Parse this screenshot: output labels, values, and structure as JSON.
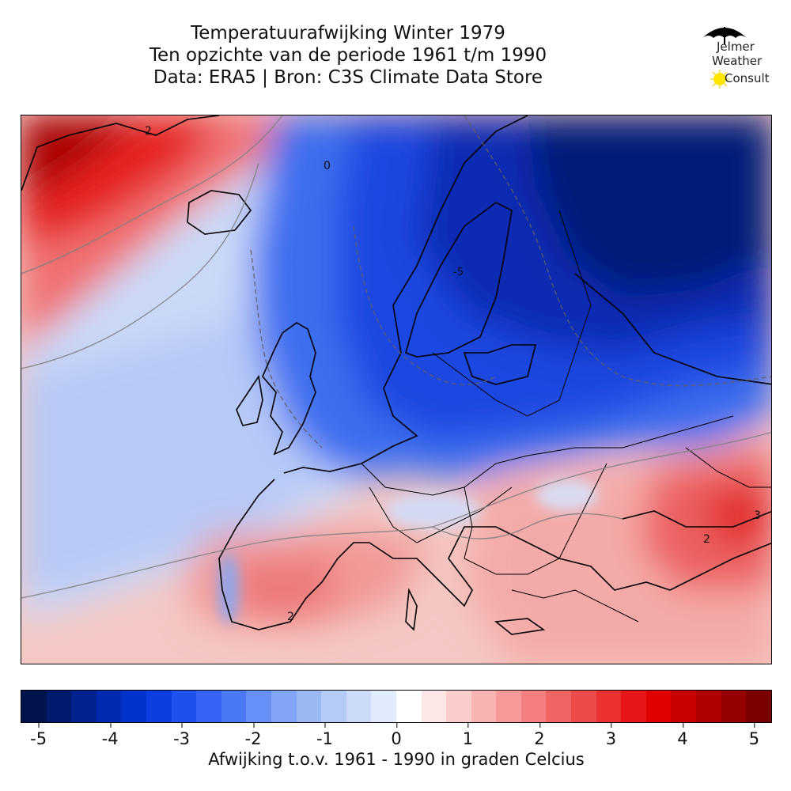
{
  "title": {
    "line1": "Temperatuurafwijking Winter 1979",
    "line2": "Ten opzichte van de periode 1961 t/m 1990",
    "line3": "Data: ERA5 | Bron: C3S Climate Data Store"
  },
  "logo": {
    "line1": "Jelmer",
    "line2": "Weather",
    "line3": "Consult"
  },
  "map_labels": {
    "greenland": "2",
    "iberia": "2",
    "turkey": "3",
    "turkey_inner": "2",
    "lapland": "-5",
    "north_sea_zero": "0"
  },
  "colorbar": {
    "label": "Afwijking t.o.v. 1961 - 1990 in graden Celcius",
    "ticks": [
      "-5",
      "-4",
      "-3",
      "-2",
      "-1",
      "0",
      "1",
      "2",
      "3",
      "4",
      "5"
    ],
    "range": [
      -5.25,
      5.25
    ],
    "colors": [
      "#00134d",
      "#001a6e",
      "#00228f",
      "#002ab0",
      "#0033cc",
      "#0a3ee0",
      "#1e50f0",
      "#3564f5",
      "#4b78f5",
      "#6690f5",
      "#82a6f5",
      "#9bb8f5",
      "#b4cbf7",
      "#cbdbf9",
      "#e2ebfb",
      "#ffffff",
      "#fde6e6",
      "#fbcccc",
      "#f8b3b3",
      "#f69999",
      "#f37f7f",
      "#f06464",
      "#ed4a4a",
      "#ea3030",
      "#e81616",
      "#e00000",
      "#c80000",
      "#b00000",
      "#960000",
      "#7a0000"
    ]
  },
  "colors": {
    "cold": "#0a2fbf",
    "warm": "#e84040"
  }
}
